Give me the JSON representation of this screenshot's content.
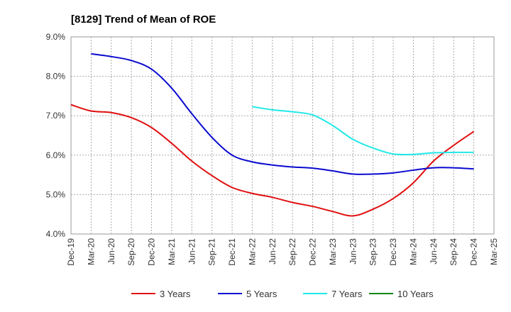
{
  "chart_data": {
    "type": "line",
    "title": "[8129]  Trend of Mean of ROE",
    "xlabel": "",
    "ylabel": "",
    "x": [
      "Dec-19",
      "Mar-20",
      "Jun-20",
      "Sep-20",
      "Dec-20",
      "Mar-21",
      "Jun-21",
      "Sep-21",
      "Dec-21",
      "Mar-22",
      "Jun-22",
      "Sep-22",
      "Dec-22",
      "Mar-23",
      "Jun-23",
      "Sep-23",
      "Dec-23",
      "Mar-24",
      "Jun-24",
      "Sep-24",
      "Dec-24",
      "Mar-25"
    ],
    "ylim": [
      4.0,
      9.0
    ],
    "yticks": [
      "4.0%",
      "5.0%",
      "6.0%",
      "7.0%",
      "8.0%",
      "9.0%"
    ],
    "grid": "horizontal dashed",
    "legend_position": "bottom",
    "series": [
      {
        "name": "3 Years",
        "color": "#e01010",
        "values": [
          7.28,
          7.12,
          7.08,
          6.95,
          6.7,
          6.3,
          5.85,
          5.48,
          5.18,
          5.03,
          4.93,
          4.8,
          4.7,
          4.57,
          4.46,
          4.63,
          4.9,
          5.3,
          5.85,
          6.25,
          6.6,
          null
        ]
      },
      {
        "name": "5 Years",
        "color": "#0a0ad0",
        "values": [
          null,
          8.57,
          8.5,
          8.4,
          8.18,
          7.7,
          7.05,
          6.45,
          6.0,
          5.83,
          5.75,
          5.7,
          5.67,
          5.6,
          5.52,
          5.52,
          5.55,
          5.62,
          5.68,
          5.68,
          5.65,
          null
        ]
      },
      {
        "name": "7 Years",
        "color": "#20e8e8",
        "values": [
          null,
          null,
          null,
          null,
          null,
          null,
          null,
          null,
          null,
          7.23,
          7.15,
          7.1,
          7.02,
          6.75,
          6.4,
          6.18,
          6.03,
          6.02,
          6.06,
          6.07,
          6.07,
          null
        ]
      },
      {
        "name": "10 Years",
        "color": "#118811",
        "values": [
          null,
          null,
          null,
          null,
          null,
          null,
          null,
          null,
          null,
          null,
          null,
          null,
          null,
          null,
          null,
          null,
          null,
          null,
          null,
          null,
          null,
          null
        ]
      }
    ]
  }
}
